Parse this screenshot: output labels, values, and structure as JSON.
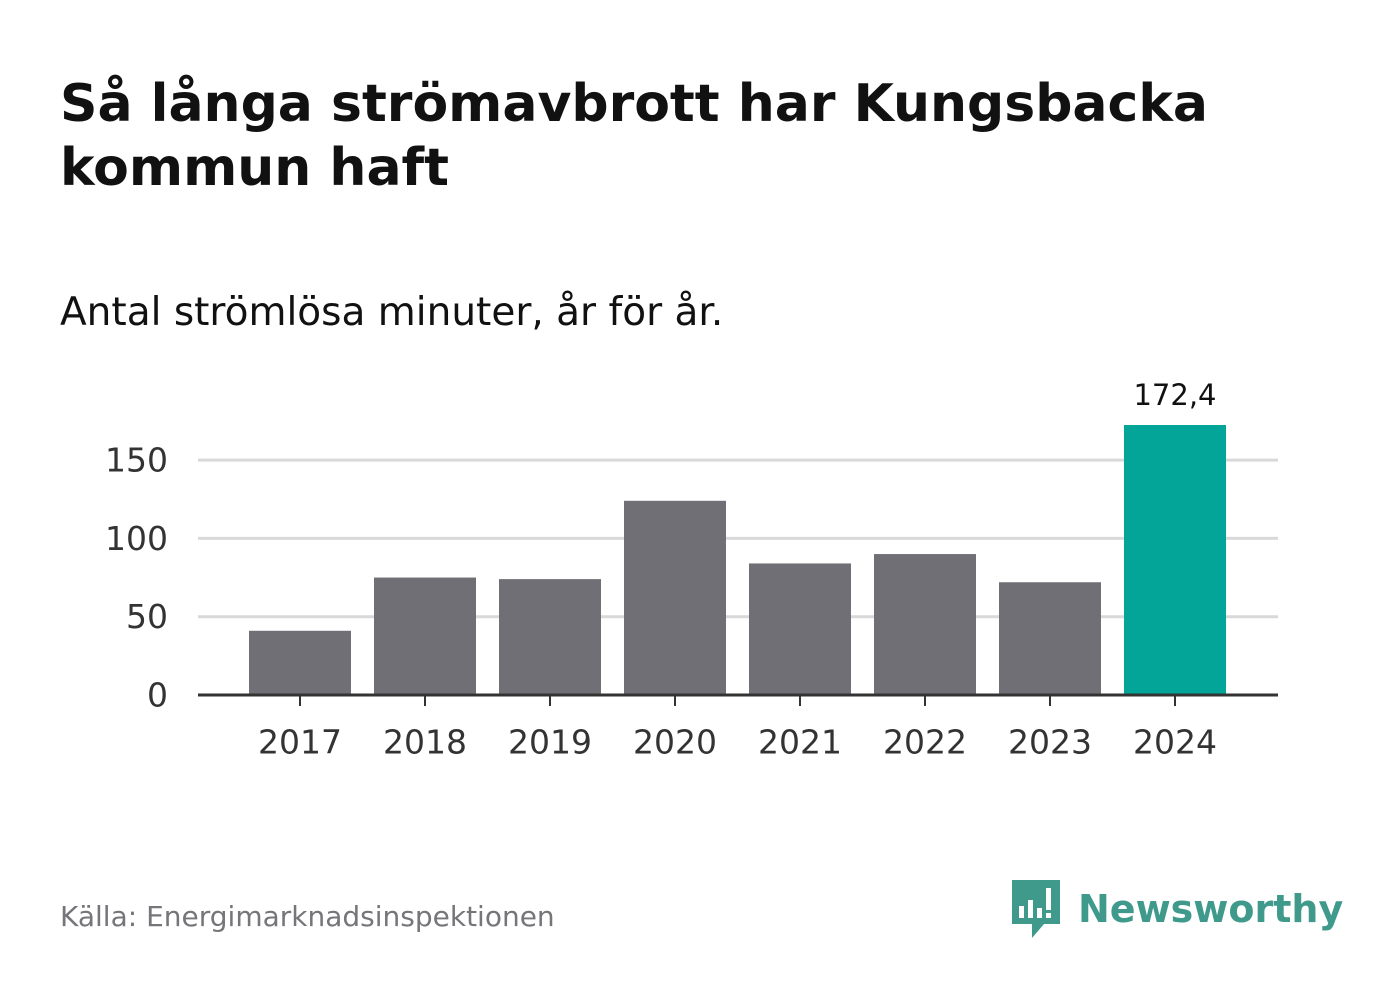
{
  "header": {
    "title": "Så långa strömavbrott har Kungsbacka kommun haft",
    "subtitle": "Antal strömlösa minuter, år för år."
  },
  "footer": {
    "source": "Källa: Energimarknadsinspektionen",
    "brand_name": "Newsworthy",
    "brand_icon": "newsworthy-logo-icon"
  },
  "colors": {
    "bar": "#706f75",
    "highlight": "#02a597",
    "grid": "#d9d9d9",
    "axis": "#333333",
    "brand": "#3f9a8b"
  },
  "chart_data": {
    "type": "bar",
    "title": "Så långa strömavbrott har Kungsbacka kommun haft",
    "subtitle": "Antal strömlösa minuter, år för år.",
    "categories": [
      "2017",
      "2018",
      "2019",
      "2020",
      "2021",
      "2022",
      "2023",
      "2024"
    ],
    "values": [
      41,
      75,
      74,
      124,
      84,
      90,
      72,
      172.4
    ],
    "highlight_index": 7,
    "data_labels": [
      {
        "index": 7,
        "text": "172,4"
      }
    ],
    "yticks": [
      0,
      50,
      100,
      150
    ],
    "ylim": [
      0,
      172.4
    ],
    "grid": true,
    "xlabel": "",
    "ylabel": ""
  }
}
